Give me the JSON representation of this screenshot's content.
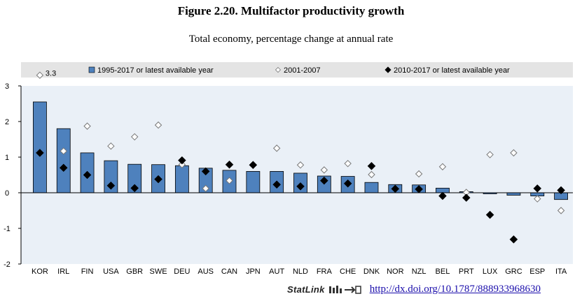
{
  "figure": {
    "title": "Figure 2.20. Multifactor productivity growth",
    "subtitle": "Total economy, percentage change at annual rate"
  },
  "statlink": {
    "label": "StatLink",
    "url": "http://dx.doi.org/10.1787/888933968630"
  },
  "chart_data": {
    "type": "bar",
    "title": "Figure 2.20. Multifactor productivity growth",
    "subtitle": "Total economy, percentage change at annual rate",
    "xlabel": "",
    "ylabel": "",
    "ylim": [
      -2,
      3
    ],
    "yticks": [
      "3",
      "2",
      "1",
      "0",
      "-1",
      "-2"
    ],
    "ytick_values": [
      3,
      2,
      1,
      0,
      -1,
      -2
    ],
    "grid": false,
    "legend_position": "top",
    "categories": [
      "KOR",
      "IRL",
      "FIN",
      "USA",
      "GBR",
      "SWE",
      "DEU",
      "AUS",
      "CAN",
      "JPN",
      "AUT",
      "NLD",
      "FRA",
      "CHE",
      "DNK",
      "NOR",
      "NZL",
      "BEL",
      "PRT",
      "LUX",
      "GRC",
      "ESP",
      "ITA"
    ],
    "series": [
      {
        "name": "1995-2017 or latest available year",
        "kind": "bar",
        "color": "#4e81bd",
        "values": [
          2.55,
          1.8,
          1.12,
          0.9,
          0.8,
          0.79,
          0.76,
          0.69,
          0.63,
          0.6,
          0.6,
          0.55,
          0.47,
          0.46,
          0.29,
          0.23,
          0.22,
          0.13,
          0.03,
          -0.03,
          -0.07,
          -0.09,
          -0.19
        ]
      },
      {
        "name": "2001-2007",
        "kind": "marker-open-diamond",
        "color": "#777777",
        "values": [
          3.3,
          1.17,
          1.87,
          1.31,
          1.57,
          1.9,
          0.79,
          0.12,
          0.34,
          0.79,
          1.25,
          0.78,
          0.64,
          0.82,
          0.51,
          0.1,
          0.53,
          0.73,
          0.01,
          1.07,
          1.12,
          -0.17,
          -0.5
        ]
      },
      {
        "name": "2010-2017 or latest available year",
        "kind": "marker-filled-diamond",
        "color": "#000000",
        "values": [
          1.12,
          0.7,
          0.5,
          0.2,
          0.13,
          0.38,
          0.91,
          0.6,
          0.79,
          0.78,
          0.23,
          0.18,
          0.34,
          0.26,
          0.75,
          0.11,
          0.1,
          -0.09,
          -0.14,
          -0.62,
          -1.31,
          0.12,
          0.07
        ]
      }
    ],
    "annotations": [
      {
        "category": "KOR",
        "series": "2001-2007",
        "text": "3.3"
      }
    ]
  }
}
